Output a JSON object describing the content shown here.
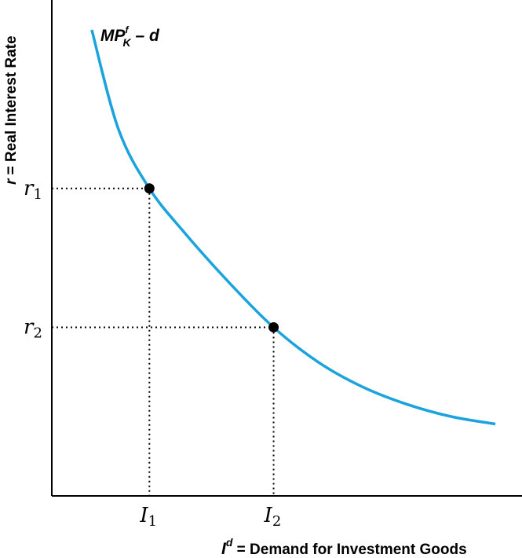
{
  "chart_data": {
    "type": "line",
    "title": "",
    "xlabel": "I^d = Demand for Investment Goods",
    "ylabel": "r = Real Interest Rate",
    "x_axis_title": {
      "symbol": "I",
      "superscript": "d",
      "text": " = Demand for Investment Goods"
    },
    "y_axis_title": {
      "symbol": "r",
      "text": " = Real Interest Rate"
    },
    "curve_label": {
      "main": "MP",
      "superscript": "f",
      "subscript": "K",
      "rest": " – d"
    },
    "series": [
      {
        "name": "MPfK – d",
        "color": "#1aa3dc",
        "points": [
          {
            "x": 0.9,
            "y": 9.4
          },
          {
            "x": 1.5,
            "y": 7.4
          },
          {
            "x": 2.2,
            "y": 6.2
          },
          {
            "x": 3.0,
            "y": 5.3
          },
          {
            "x": 4.0,
            "y": 4.3
          },
          {
            "x": 5.0,
            "y": 3.4
          },
          {
            "x": 6.0,
            "y": 2.7
          },
          {
            "x": 7.0,
            "y": 2.2
          },
          {
            "x": 8.0,
            "y": 1.85
          },
          {
            "x": 9.0,
            "y": 1.6
          },
          {
            "x": 10.0,
            "y": 1.45
          }
        ]
      }
    ],
    "highlighted_points": [
      {
        "x": 2.2,
        "y": 6.2,
        "x_label": "I",
        "x_sub": "1",
        "y_label": "r",
        "y_sub": "1"
      },
      {
        "x": 5.0,
        "y": 3.4,
        "x_label": "I",
        "x_sub": "2",
        "y_label": "r",
        "y_sub": "2"
      }
    ],
    "xlim": [
      0,
      10.6
    ],
    "ylim": [
      0,
      10
    ],
    "grid": false,
    "legend": "none"
  }
}
